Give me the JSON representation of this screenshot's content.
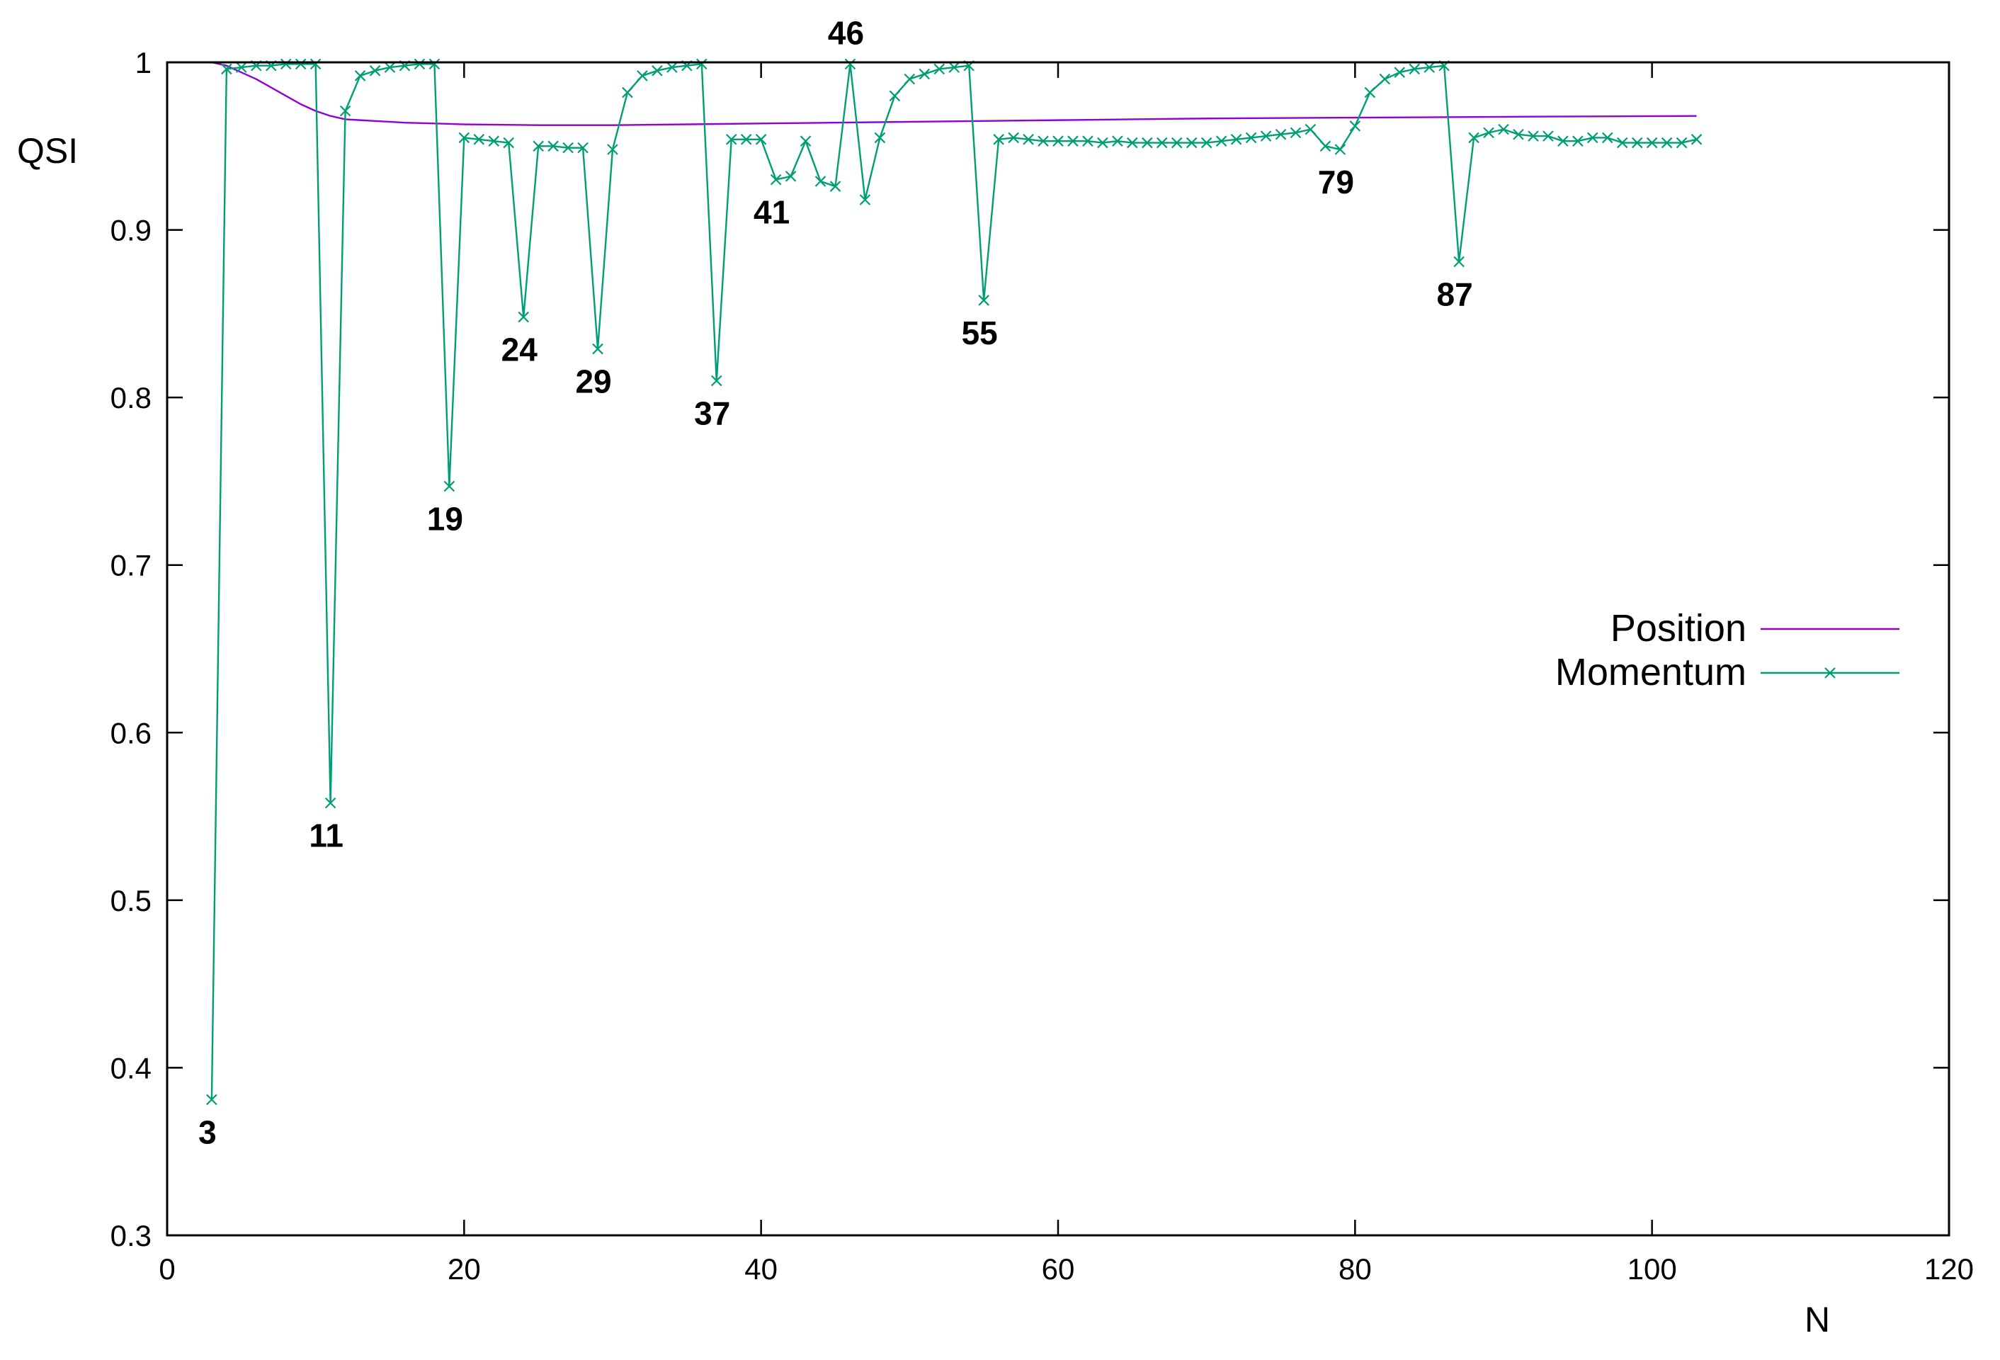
{
  "chart_data": {
    "type": "line",
    "xlabel": "N",
    "ylabel": "QSI",
    "xlim": [
      0,
      120
    ],
    "ylim": [
      0.3,
      1
    ],
    "xticks": [
      0,
      20,
      40,
      60,
      80,
      100,
      120
    ],
    "xtick_labels": [
      "0",
      "20",
      "40",
      "60",
      "80",
      "100",
      "120"
    ],
    "yticks": [
      0.3,
      0.4,
      0.5,
      0.6,
      0.7,
      0.8,
      0.9,
      1
    ],
    "ytick_labels": [
      "0.3",
      "0.4",
      "0.5",
      "0.6",
      "0.7",
      "0.8",
      "0.9",
      "1"
    ],
    "grid": false,
    "legend_position": "right",
    "series": [
      {
        "name": "Position",
        "color": "#9400d3",
        "marker": "none",
        "x": [
          3,
          4,
          5,
          6,
          7,
          8,
          9,
          10,
          11,
          12,
          13,
          14,
          15,
          16,
          18,
          20,
          25,
          30,
          40,
          50,
          60,
          70,
          80,
          90,
          103
        ],
        "y": [
          1.0,
          0.998,
          0.994,
          0.99,
          0.985,
          0.98,
          0.975,
          0.971,
          0.968,
          0.966,
          0.9655,
          0.965,
          0.9645,
          0.964,
          0.9635,
          0.963,
          0.9625,
          0.9625,
          0.9635,
          0.9645,
          0.9655,
          0.9665,
          0.967,
          0.9675,
          0.968
        ]
      },
      {
        "name": "Momentum",
        "color": "#009e73",
        "marker": "x",
        "x": [
          3,
          4,
          5,
          6,
          7,
          8,
          9,
          10,
          11,
          12,
          13,
          14,
          15,
          16,
          17,
          18,
          19,
          20,
          21,
          22,
          23,
          24,
          25,
          26,
          27,
          28,
          29,
          30,
          31,
          32,
          33,
          34,
          35,
          36,
          37,
          38,
          39,
          40,
          41,
          42,
          43,
          44,
          45,
          46,
          47,
          48,
          49,
          50,
          51,
          52,
          53,
          54,
          55,
          56,
          57,
          58,
          59,
          60,
          61,
          62,
          63,
          64,
          65,
          66,
          67,
          68,
          69,
          70,
          71,
          72,
          73,
          74,
          75,
          76,
          77,
          78,
          79,
          80,
          81,
          82,
          83,
          84,
          85,
          86,
          87,
          88,
          89,
          90,
          91,
          92,
          93,
          94,
          95,
          96,
          97,
          98,
          99,
          100,
          101,
          102,
          103
        ],
        "y": [
          0.381,
          0.996,
          0.997,
          0.998,
          0.998,
          0.999,
          0.999,
          0.999,
          0.558,
          0.971,
          0.992,
          0.995,
          0.997,
          0.998,
          0.999,
          0.999,
          0.747,
          0.955,
          0.954,
          0.953,
          0.952,
          0.848,
          0.95,
          0.95,
          0.949,
          0.949,
          0.829,
          0.948,
          0.982,
          0.992,
          0.995,
          0.997,
          0.998,
          0.999,
          0.81,
          0.954,
          0.954,
          0.954,
          0.93,
          0.932,
          0.953,
          0.929,
          0.926,
          0.999,
          0.918,
          0.955,
          0.98,
          0.99,
          0.993,
          0.996,
          0.997,
          0.998,
          0.858,
          0.954,
          0.955,
          0.954,
          0.953,
          0.953,
          0.953,
          0.953,
          0.952,
          0.953,
          0.952,
          0.952,
          0.952,
          0.952,
          0.952,
          0.952,
          0.953,
          0.954,
          0.955,
          0.956,
          0.957,
          0.958,
          0.96,
          0.95,
          0.948,
          0.962,
          0.982,
          0.99,
          0.994,
          0.996,
          0.997,
          0.998,
          0.881,
          0.955,
          0.958,
          0.96,
          0.957,
          0.956,
          0.956,
          0.953,
          0.953,
          0.955,
          0.955,
          0.952,
          0.952,
          0.952,
          0.952,
          0.952,
          0.954
        ]
      }
    ],
    "annotations": [
      {
        "text": "3",
        "x": 3,
        "y": 0.381,
        "pos": "below"
      },
      {
        "text": "11",
        "x": 11,
        "y": 0.558,
        "pos": "below"
      },
      {
        "text": "19",
        "x": 19,
        "y": 0.747,
        "pos": "below"
      },
      {
        "text": "24",
        "x": 24,
        "y": 0.848,
        "pos": "below"
      },
      {
        "text": "29",
        "x": 29,
        "y": 0.829,
        "pos": "below"
      },
      {
        "text": "37",
        "x": 37,
        "y": 0.81,
        "pos": "below"
      },
      {
        "text": "41",
        "x": 41,
        "y": 0.93,
        "pos": "below"
      },
      {
        "text": "46",
        "x": 46,
        "y": 0.999,
        "pos": "above"
      },
      {
        "text": "55",
        "x": 55,
        "y": 0.858,
        "pos": "below"
      },
      {
        "text": "79",
        "x": 79,
        "y": 0.948,
        "pos": "below"
      },
      {
        "text": "87",
        "x": 87,
        "y": 0.881,
        "pos": "below"
      }
    ]
  }
}
